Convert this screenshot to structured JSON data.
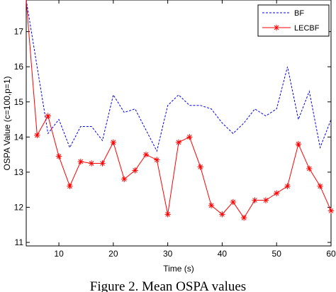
{
  "chart_data": {
    "type": "line",
    "title": "",
    "xlabel": "Time (s)",
    "ylabel": "OSPA Value (c=100,p=1)",
    "xlim": [
      4,
      60
    ],
    "ylim": [
      10.9,
      17.9
    ],
    "xticks": [
      10,
      20,
      30,
      40,
      50,
      60
    ],
    "yticks": [
      11,
      12,
      13,
      14,
      15,
      16,
      17
    ],
    "grid": false,
    "legend_position": "top-right",
    "caption": "Figure 2. Mean OSPA values",
    "series": [
      {
        "name": "BF",
        "color": "#0000ff",
        "line_style": "dashed",
        "marker": "none",
        "x": [
          4,
          6,
          8,
          10,
          12,
          14,
          16,
          18,
          20,
          22,
          24,
          26,
          28,
          30,
          32,
          34,
          36,
          38,
          40,
          42,
          44,
          46,
          48,
          50,
          52,
          54,
          56,
          58,
          60
        ],
        "y": [
          17.9,
          16.0,
          14.1,
          14.5,
          13.7,
          14.3,
          14.3,
          13.9,
          15.2,
          14.7,
          14.8,
          14.2,
          13.6,
          14.9,
          15.2,
          14.9,
          14.9,
          14.8,
          14.4,
          14.1,
          14.4,
          14.8,
          14.6,
          14.8,
          16.0,
          14.5,
          15.3,
          13.7,
          14.5
        ]
      },
      {
        "name": "LECBF",
        "color": "#ff0000",
        "line_style": "solid",
        "marker": "asterisk",
        "x": [
          4,
          6,
          8,
          10,
          12,
          14,
          16,
          18,
          20,
          22,
          24,
          26,
          28,
          30,
          32,
          34,
          36,
          38,
          40,
          42,
          44,
          46,
          48,
          50,
          52,
          54,
          56,
          58,
          60
        ],
        "y": [
          17.9,
          14.05,
          14.6,
          13.45,
          12.6,
          13.3,
          13.25,
          13.25,
          13.85,
          12.8,
          13.05,
          13.5,
          13.35,
          11.8,
          13.85,
          14.0,
          13.15,
          12.05,
          11.8,
          12.15,
          11.7,
          12.2,
          12.2,
          12.4,
          12.6,
          13.8,
          13.1,
          12.6,
          11.9
        ]
      }
    ]
  }
}
